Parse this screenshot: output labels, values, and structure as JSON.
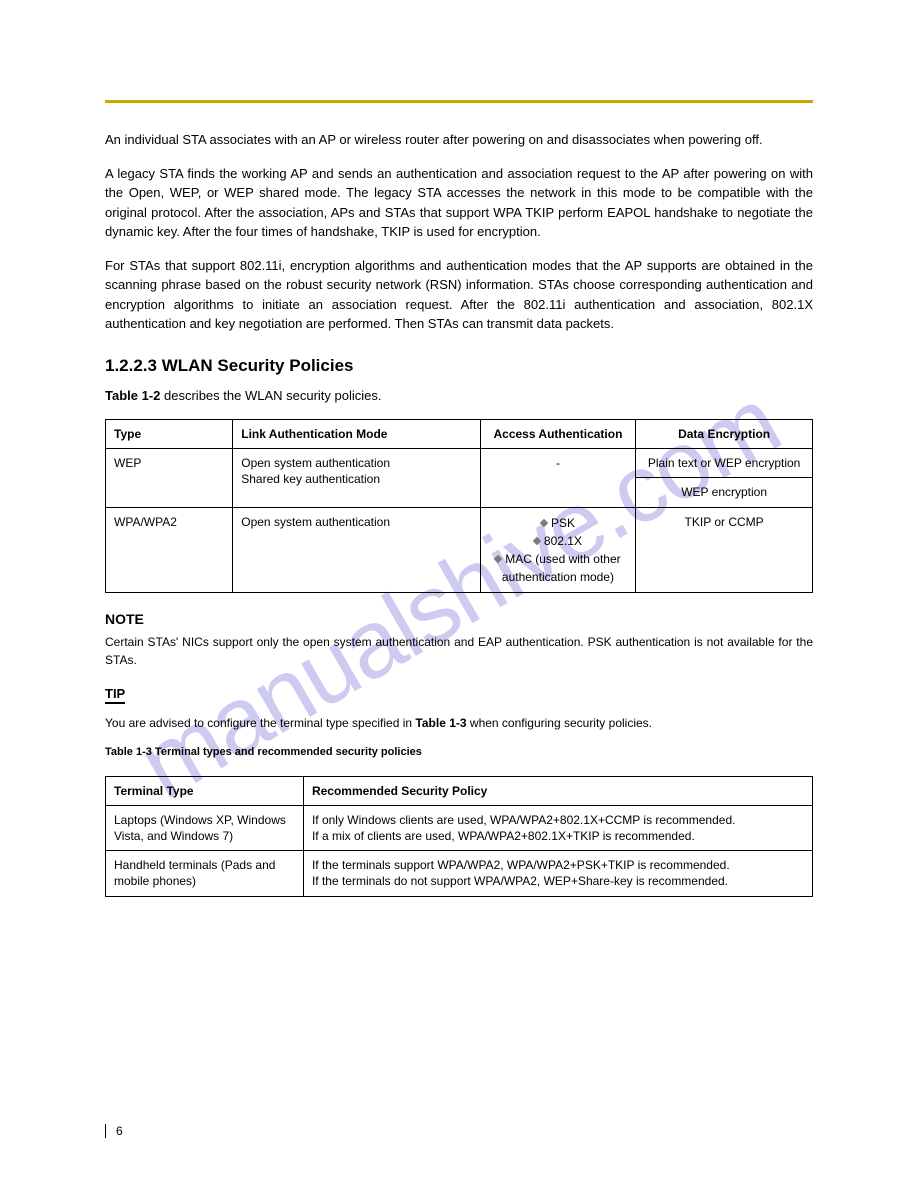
{
  "watermark": "manualshive.com",
  "rule_color": "#c9a800",
  "watermark_color": "#b3b0e8",
  "para1": "An individual STA associates with an AP or wireless router after powering on and disassociates when powering off.",
  "para2a": "A legacy STA finds the working AP and sends an authentication and association request to the AP after powering on with the Open, WEP, or WEP shared mode. The legacy STA accesses the network in this mode to be compatible with the original protocol.",
  "para2b": "After the association, APs and STAs that support WPA TKIP perform EAPOL handshake to negotiate the dynamic key. After the four times of handshake, TKIP is used for encryption.",
  "para3": "For STAs that support 802.11i, encryption algorithms and authentication modes that the AP supports are obtained in the scanning phrase based on the robust security network (RSN) information. STAs choose corresponding authentication and encryption algorithms to initiate an association request. After the 802.11i authentication and association, 802.1X authentication and key negotiation are performed. Then STAs can transmit data packets.",
  "table1_title": "1.2.2.3 WLAN Security Policies",
  "table1_intro": "describes the WLAN security policies.",
  "table1_link": "Table 1-2",
  "table1": {
    "columns": [
      "Type",
      "Link Authentication Mode",
      "Access Authentication",
      "Data Encryption"
    ],
    "rows": [
      {
        "type": "WEP",
        "link": "Open system authentication\nShared key authentication",
        "access": "-",
        "encrypt1": "Plain text or WEP encryption",
        "encrypt2": "WEP encryption",
        "split": true
      },
      {
        "type": "WPA/WPA2",
        "link": "Open system authentication",
        "access_lines": [
          "PSK",
          "802.1X",
          "MAC (used with other authentication mode)"
        ],
        "encrypt": "TKIP or CCMP",
        "split": false
      }
    ]
  },
  "note_label": "NOTE",
  "note_text": "Certain STAs' NICs support only the open system authentication and EAP authentication. PSK authentication is not available for the STAs.",
  "tip_label": "TIP",
  "tip_text1": "You are advised to configure the terminal type specified in",
  "tip_link": "Table 1-3",
  "tip_text2": " when configuring security policies.",
  "table2_caption": "Table 1-3 Terminal types and recommended security policies",
  "table2": {
    "columns": [
      "Terminal Type",
      "Recommended Security Policy"
    ],
    "rows": [
      [
        "Laptops (Windows XP, Windows Vista, and Windows 7)",
        "If only Windows clients are used, WPA/WPA2+802.1X+CCMP is recommended.\nIf a mix of clients are used, WPA/WPA2+802.1X+TKIP is recommended."
      ],
      [
        "Handheld terminals (Pads and mobile phones)",
        "If the terminals support WPA/WPA2, WPA/WPA2+PSK+TKIP is recommended.\nIf the terminals do not support WPA/WPA2, WEP+Share-key is recommended."
      ]
    ]
  },
  "page_number": "6"
}
